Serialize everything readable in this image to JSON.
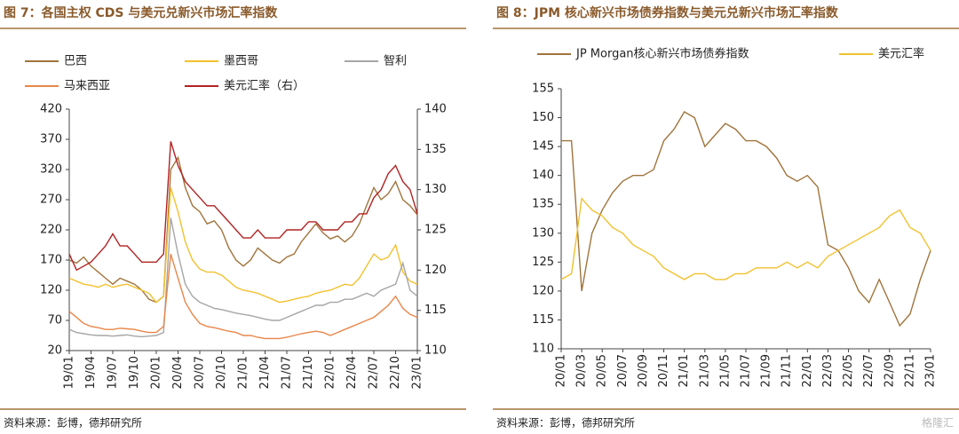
{
  "chart_data": [
    {
      "type": "line",
      "title": "图 7：各国主权 CDS 与美元兑新兴市场汇率指数",
      "source": "资料来源：彭博，德邦研究所",
      "categories": [
        "19/01",
        null,
        null,
        "19/04",
        null,
        null,
        "19/07",
        null,
        null,
        "19/10",
        null,
        null,
        "20/01",
        null,
        null,
        "20/04",
        null,
        null,
        "20/07",
        null,
        null,
        "20/10",
        null,
        null,
        "21/01",
        null,
        null,
        "21/04",
        null,
        null,
        "21/07",
        null,
        null,
        "21/10",
        null,
        null,
        "22/01",
        null,
        null,
        "22/04",
        null,
        null,
        "22/07",
        null,
        null,
        "22/10",
        null,
        null,
        "23/01"
      ],
      "ylim": [
        20,
        420
      ],
      "yticks": [
        20,
        70,
        120,
        170,
        220,
        270,
        320,
        370,
        420
      ],
      "y2lim": [
        110,
        140
      ],
      "y2ticks": [
        110,
        115,
        120,
        125,
        130,
        135,
        140
      ],
      "series": [
        {
          "name": "巴西",
          "color": "#a0743c",
          "values": [
            170,
            165,
            175,
            160,
            150,
            140,
            130,
            140,
            135,
            130,
            120,
            105,
            100,
            110,
            320,
            340,
            290,
            260,
            250,
            230,
            235,
            220,
            190,
            170,
            160,
            170,
            190,
            180,
            170,
            165,
            175,
            180,
            200,
            215,
            230,
            215,
            205,
            210,
            200,
            210,
            230,
            260,
            290,
            270,
            280,
            300,
            270,
            260,
            245
          ]
        },
        {
          "name": "墨西哥",
          "color": "#f2c12e",
          "values": [
            140,
            135,
            130,
            128,
            125,
            130,
            125,
            128,
            130,
            125,
            120,
            115,
            100,
            110,
            290,
            250,
            200,
            170,
            155,
            150,
            150,
            145,
            135,
            125,
            120,
            118,
            115,
            110,
            105,
            100,
            102,
            105,
            108,
            110,
            115,
            118,
            120,
            125,
            130,
            128,
            140,
            160,
            180,
            170,
            175,
            195,
            150,
            135,
            130
          ]
        },
        {
          "name": "智利",
          "color": "#a6a6a6",
          "values": [
            55,
            50,
            48,
            46,
            45,
            45,
            44,
            45,
            46,
            44,
            43,
            44,
            45,
            50,
            240,
            180,
            130,
            110,
            100,
            95,
            90,
            88,
            85,
            82,
            80,
            78,
            75,
            72,
            70,
            70,
            75,
            80,
            85,
            90,
            95,
            95,
            100,
            100,
            105,
            105,
            110,
            115,
            110,
            120,
            125,
            130,
            165,
            120,
            110
          ]
        },
        {
          "name": "马来西亚",
          "color": "#e8864a",
          "values": [
            85,
            75,
            65,
            60,
            58,
            55,
            55,
            57,
            56,
            55,
            52,
            50,
            50,
            60,
            180,
            140,
            100,
            80,
            65,
            60,
            58,
            55,
            52,
            50,
            45,
            45,
            42,
            40,
            40,
            40,
            42,
            45,
            48,
            50,
            52,
            50,
            45,
            50,
            55,
            60,
            65,
            70,
            75,
            85,
            95,
            110,
            90,
            80,
            75
          ]
        },
        {
          "name": "美元汇率（右）",
          "color": "#b22222",
          "axis": "y2",
          "values": [
            122,
            120,
            120.5,
            121,
            122,
            123,
            124.5,
            123,
            123,
            122,
            121,
            121,
            121,
            122,
            136,
            133,
            131,
            130,
            129,
            128,
            128,
            127,
            126,
            125,
            124,
            124,
            125,
            124,
            124,
            124,
            125,
            125,
            125,
            126,
            126,
            125,
            125,
            125,
            126,
            126,
            127,
            127,
            129,
            130,
            132,
            133,
            131,
            130,
            127
          ]
        }
      ]
    },
    {
      "type": "line",
      "title": "图 8：JPM 核心新兴市场债券指数与美元兑新兴市场汇率指数",
      "source": "资料来源：彭博，德邦研究所",
      "categories": [
        "20/01",
        null,
        "20/03",
        null,
        "20/05",
        null,
        "20/07",
        null,
        "20/09",
        null,
        "20/11",
        null,
        "21/01",
        null,
        "21/03",
        null,
        "21/05",
        null,
        "21/07",
        null,
        "21/09",
        null,
        "21/11",
        null,
        "22/01",
        null,
        "22/03",
        null,
        "22/05",
        null,
        "22/07",
        null,
        "22/09",
        null,
        "22/11",
        null,
        "23/01"
      ],
      "ylim": [
        110,
        155
      ],
      "yticks": [
        110,
        115,
        120,
        125,
        130,
        135,
        140,
        145,
        150,
        155
      ],
      "series": [
        {
          "name": "JP Morgan核心新兴市场债券指数",
          "color": "#a0743c",
          "values": [
            146,
            146,
            120,
            130,
            134,
            137,
            139,
            140,
            140,
            141,
            146,
            148,
            151,
            150,
            145,
            147,
            149,
            148,
            146,
            146,
            145,
            143,
            140,
            139,
            140,
            138,
            128,
            127,
            124,
            120,
            118,
            122,
            118,
            114,
            116,
            122,
            127
          ]
        },
        {
          "name": "美元汇率",
          "color": "#f2c12e",
          "values": [
            122,
            123,
            136,
            134,
            133,
            131,
            130,
            128,
            127,
            126,
            124,
            123,
            122,
            123,
            123,
            122,
            122,
            123,
            123,
            124,
            124,
            124,
            125,
            124,
            125,
            124,
            126,
            127,
            128,
            129,
            130,
            131,
            133,
            134,
            131,
            130,
            127
          ]
        }
      ]
    }
  ],
  "watermark": "格隆汇"
}
